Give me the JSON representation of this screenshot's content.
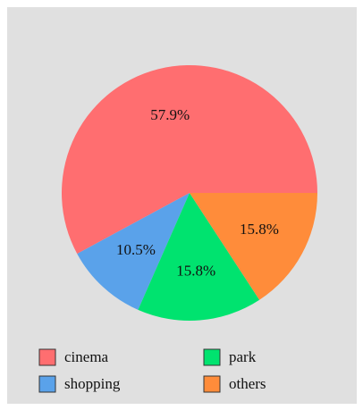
{
  "chart_data": {
    "type": "pie",
    "categories": [
      "cinema",
      "shopping",
      "park",
      "others"
    ],
    "values": [
      57.9,
      10.5,
      15.8,
      15.8
    ],
    "value_labels": [
      "57.9%",
      "10.5%",
      "15.8%",
      "15.8%"
    ],
    "colors": [
      "#ff6e70",
      "#5aa2ea",
      "#00e36f",
      "#ff8c3a"
    ],
    "legend": "bottom"
  }
}
